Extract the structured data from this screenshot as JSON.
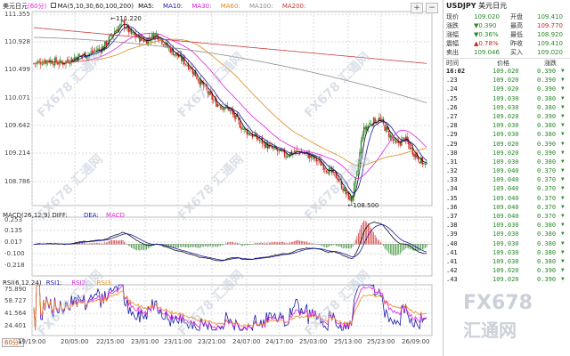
{
  "chart": {
    "symbol_name": "美元日元",
    "period": "(60分)",
    "ma_label": "MA(5,10,30,60,100,200)",
    "ma_lines": [
      {
        "label": "MA5:",
        "color": "#000000"
      },
      {
        "label": "MA10:",
        "color": "#1a1aa6"
      },
      {
        "label": "MA30:",
        "color": "#e020e0"
      },
      {
        "label": "MA60:",
        "color": "#e08a1a"
      },
      {
        "label": "MA100:",
        "color": "#8c8c8c"
      },
      {
        "label": "MA200:",
        "color": "#c83a3a"
      }
    ],
    "price_axis": [
      "111.355",
      "110.928",
      "110.499",
      "110.071",
      "109.642",
      "109.214",
      "108.786"
    ],
    "high_marker": "111.220",
    "low_marker": "108.500",
    "macd_label": "MACD(26,12,9) DIFF:",
    "macd_dea": "DEA:",
    "macd_macd": "MACD",
    "macd_axis": [
      "0.253",
      "0.135",
      "0.017",
      "-0.100",
      "-0.218"
    ],
    "rsi_label": "RSI(6,12,24)",
    "rsi_lines": [
      {
        "label": "RSI1:",
        "color": "#1a1aa6"
      },
      {
        "label": "RSI2:",
        "color": "#e020e0"
      },
      {
        "label": "RSI3:",
        "color": "#e08a1a"
      }
    ],
    "rsi_axis": [
      "75.890",
      "58.727",
      "41.564",
      "24.401"
    ],
    "time_axis": [
      "19/19:00",
      "20/05:00",
      "22/15:00",
      "23/01:00",
      "23/11:00",
      "23/21:00",
      "24/07:00",
      "24/17:00",
      "25/03:00",
      "25/13:00",
      "25/23:00",
      "26/09:00"
    ],
    "period_button": "60分",
    "watermark_main": "FX678",
    "watermark_sub": "汇通网",
    "colors": {
      "up": "#2a8a2a",
      "down": "#d02020",
      "grid": "#d8d8d8"
    }
  },
  "quote": {
    "code": "USDJPY",
    "name": "美元日元",
    "rows": [
      {
        "l1": "现价",
        "v1": "109.020",
        "l2": "开盘",
        "v2": "109.410"
      },
      {
        "l1": "涨跌",
        "v1": "▼0.390",
        "l2": "最高",
        "v2": "109.770"
      },
      {
        "l1": "涨幅",
        "v1": "▼0.36%",
        "l2": "最低",
        "v2": "108.920"
      },
      {
        "l1": "震幅",
        "v1": "▲0.78%",
        "l2": "昨收",
        "v2": "109.410"
      },
      {
        "l1": "卖出",
        "v1": "109.046",
        "l2": "买入",
        "v2": "109.020"
      }
    ],
    "table_headers": [
      "时间",
      "价格",
      "涨跌"
    ],
    "first_time": "16:02",
    "ticks": [
      {
        "t": "16:02",
        "p": "109.020",
        "c": "0.390"
      },
      {
        "t": ".23",
        "p": "109.020",
        "c": "0.390"
      },
      {
        "t": ".24",
        "p": "109.020",
        "c": "0.390"
      },
      {
        "t": ".25",
        "p": "109.030",
        "c": "0.380"
      },
      {
        "t": ".26",
        "p": "109.030",
        "c": "0.380"
      },
      {
        "t": ".27",
        "p": "109.020",
        "c": "0.390"
      },
      {
        "t": ".28",
        "p": "109.030",
        "c": "0.380"
      },
      {
        "t": ".29",
        "p": "109.030",
        "c": "0.380"
      },
      {
        "t": ".29",
        "p": "109.020",
        "c": "0.390"
      },
      {
        "t": ".30",
        "p": "109.020",
        "c": "0.390"
      },
      {
        "t": ".31",
        "p": "109.030",
        "c": "0.380"
      },
      {
        "t": ".32",
        "p": "109.040",
        "c": "0.370"
      },
      {
        "t": ".33",
        "p": "109.040",
        "c": "0.370"
      },
      {
        "t": ".34",
        "p": "109.040",
        "c": "0.370"
      },
      {
        "t": ".35",
        "p": "109.040",
        "c": "0.370"
      },
      {
        "t": ".36",
        "p": "109.040",
        "c": "0.370"
      },
      {
        "t": ".37",
        "p": "109.040",
        "c": "0.370"
      },
      {
        "t": ".38",
        "p": "109.030",
        "c": "0.380"
      },
      {
        "t": ".39",
        "p": "109.030",
        "c": "0.380"
      },
      {
        "t": ".40",
        "p": "109.030",
        "c": "0.380"
      },
      {
        "t": ".41",
        "p": "109.030",
        "c": "0.380"
      },
      {
        "t": ".41",
        "p": "109.030",
        "c": "0.380"
      },
      {
        "t": ".42",
        "p": "109.020",
        "c": "0.390"
      },
      {
        "t": ".43",
        "p": "109.020",
        "c": "0.390"
      }
    ]
  }
}
